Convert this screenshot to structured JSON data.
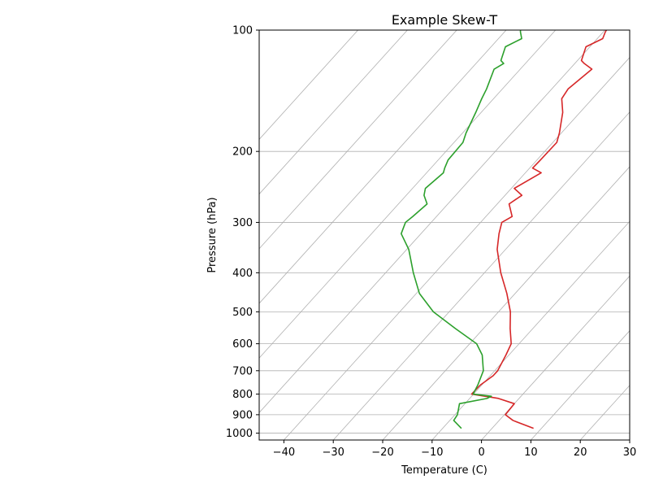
{
  "chart_data": {
    "type": "line",
    "title": "Example Skew-T",
    "xlabel": "Temperature (C)",
    "ylabel": "Pressure (hPa)",
    "xlim": [
      -45,
      30
    ],
    "ylim": [
      1000,
      100
    ],
    "y_scale": "log",
    "grid": true,
    "x_ticks": [
      -40,
      -30,
      -20,
      -10,
      0,
      10,
      20,
      30
    ],
    "y_ticks": [
      100,
      200,
      300,
      400,
      500,
      600,
      700,
      800,
      900,
      1000
    ],
    "skewed_isotherms": [
      -100,
      -90,
      -80,
      -70,
      -60,
      -50,
      -40,
      -30,
      -20,
      -10,
      0,
      10,
      20,
      30
    ],
    "series": [
      {
        "color": "#d62728",
        "pressure": [
          973,
          930,
          900,
          845,
          820,
          800,
          760,
          720,
          700,
          640,
          600,
          550,
          500,
          450,
          400,
          350,
          320,
          300,
          290,
          270,
          257,
          247,
          226,
          220,
          210,
          190,
          180,
          160,
          148,
          140,
          125,
          121,
          119,
          110,
          105,
          101,
          100
        ],
        "temperature": [
          8.4,
          2.8,
          0.2,
          0.0,
          -4.2,
          -10.4,
          -10.3,
          -9.4,
          -9.4,
          -10.6,
          -11.6,
          -14.6,
          -17.6,
          -21.7,
          -26.7,
          -31.7,
          -34.2,
          -35.7,
          -34.7,
          -37.6,
          -36.6,
          -39.4,
          -36.8,
          -39.4,
          -39.3,
          -39.2,
          -40.4,
          -43.5,
          -46.2,
          -46.7,
          -45.5,
          -48.1,
          -49.2,
          -50.8,
          -48.9,
          -49.6,
          -49.7
        ]
      },
      {
        "color": "#2ca02c",
        "pressure": [
          973,
          930,
          900,
          845,
          820,
          810,
          800,
          760,
          700,
          640,
          600,
          550,
          500,
          450,
          400,
          350,
          320,
          300,
          290,
          270,
          257,
          247,
          226,
          220,
          210,
          190,
          180,
          160,
          148,
          140,
          125,
          121,
          119,
          110,
          105,
          101,
          100
        ],
        "temperature": [
          -6.2,
          -9.2,
          -9.5,
          -11.1,
          -6.5,
          -6.0,
          -10.1,
          -10.8,
          -12.3,
          -15.4,
          -18.6,
          -25.7,
          -33.2,
          -39.4,
          -44.4,
          -49.6,
          -54.0,
          -55.2,
          -54.8,
          -54.2,
          -56.4,
          -57.4,
          -56.6,
          -57.2,
          -58.0,
          -58.2,
          -59.3,
          -61.1,
          -62.4,
          -63.2,
          -65.3,
          -64.4,
          -65.5,
          -67.1,
          -65.3,
          -66.8,
          -67.1
        ]
      }
    ]
  }
}
